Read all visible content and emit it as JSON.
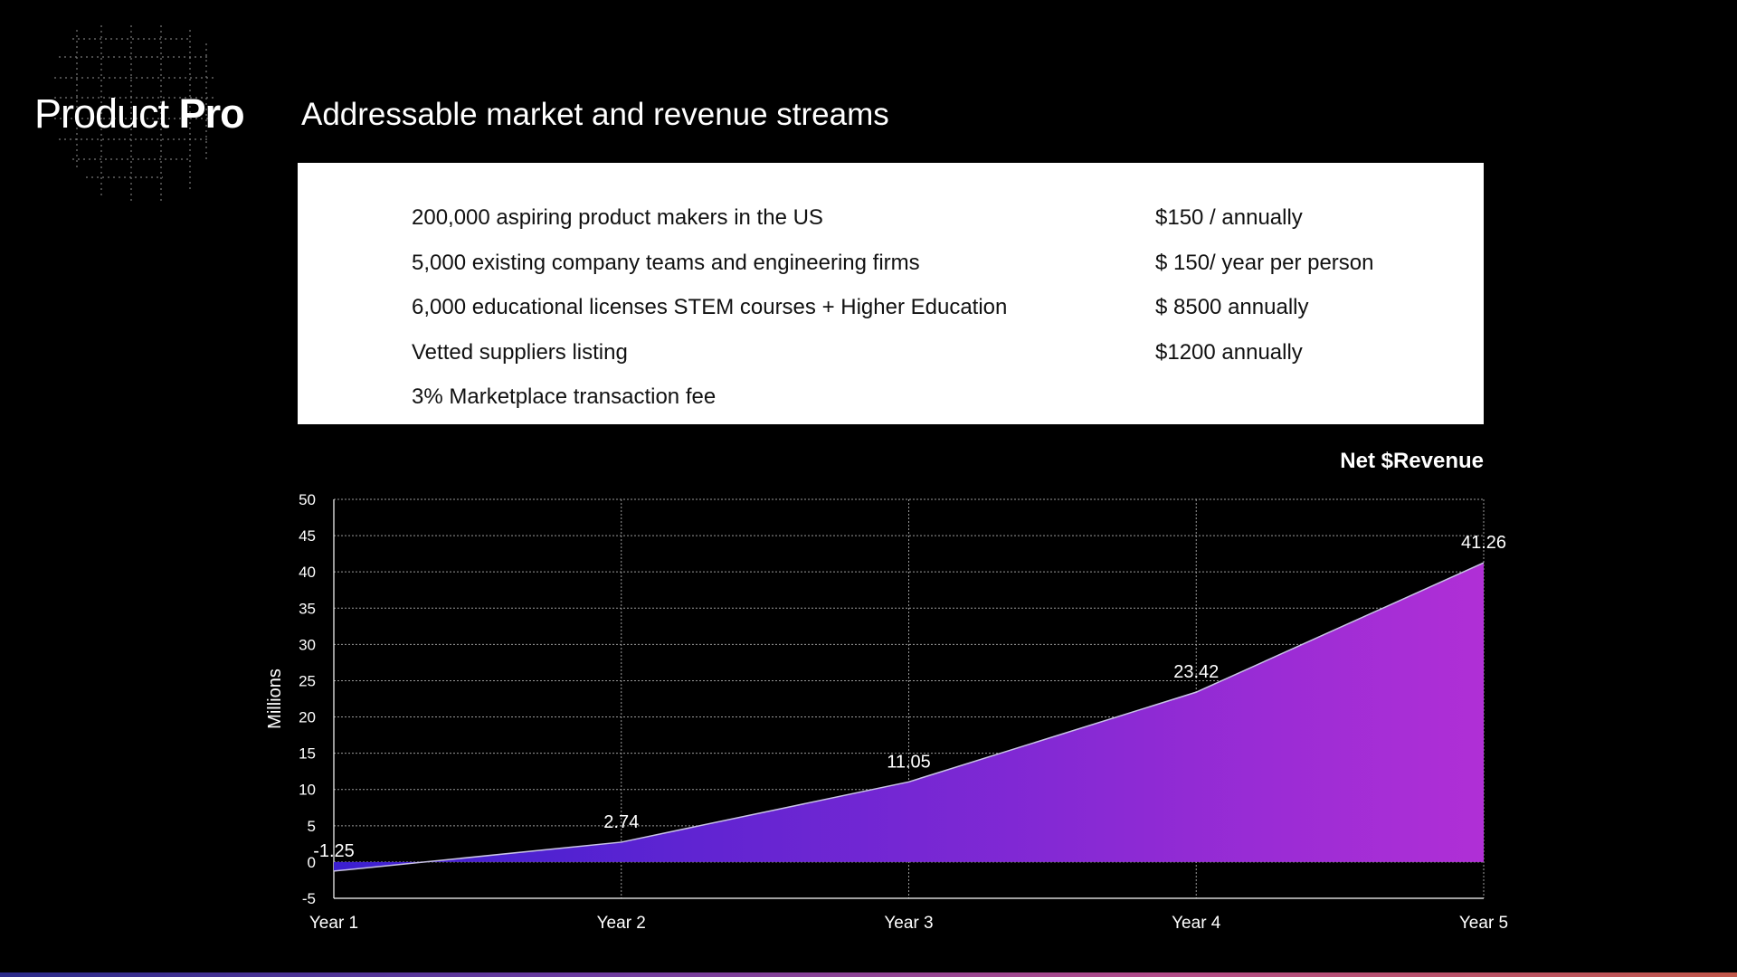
{
  "brand": {
    "name_regular": "Product",
    "name_bold": "Pro"
  },
  "slide_title": "Addressable market and revenue streams",
  "market_rows": [
    {
      "segment": "200,000 aspiring product makers in the US",
      "price": "$150 / annually"
    },
    {
      "segment": "5,000 existing company teams and engineering firms",
      "price": "$ 150/ year per person"
    },
    {
      "segment": "6,000 educational licenses STEM courses + Higher Education",
      "price": "$ 8500 annually"
    },
    {
      "segment": "Vetted suppliers listing",
      "price": "$1200 annually"
    },
    {
      "segment": "3% Marketplace transaction fee",
      "price": ""
    }
  ],
  "chart_data": {
    "type": "area",
    "title": "Net $Revenue",
    "ylabel": "Millions",
    "xlabel": "",
    "categories": [
      "Year 1",
      "Year 2",
      "Year 3",
      "Year 4",
      "Year 5"
    ],
    "values": [
      -1.25,
      2.74,
      11.05,
      23.42,
      41.26
    ],
    "data_labels": [
      "-1.25",
      "2.74",
      "11.05",
      "23.42",
      "41.26"
    ],
    "ylim": [
      -5,
      50
    ],
    "yticks": [
      -5,
      0,
      5,
      10,
      15,
      20,
      25,
      30,
      35,
      40,
      45,
      50
    ],
    "grid": true,
    "gradient_colors": [
      "#3b1fd0",
      "#b02fd6"
    ]
  }
}
